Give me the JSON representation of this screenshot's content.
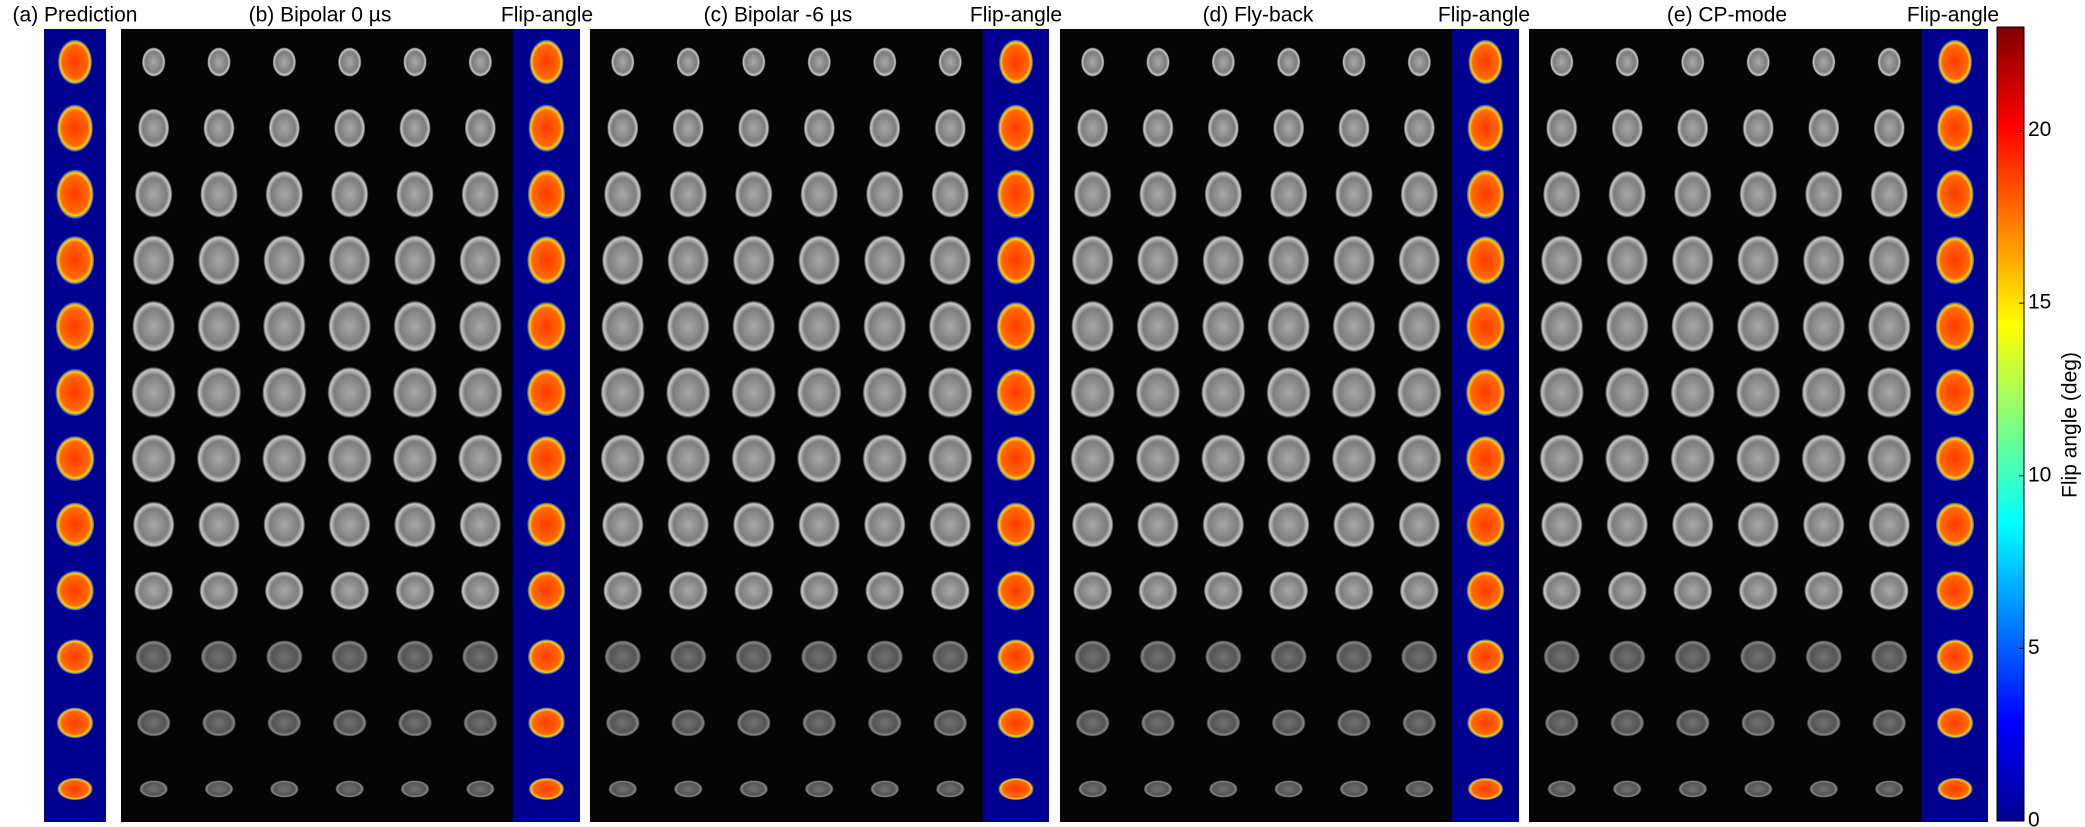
{
  "panels": [
    {
      "title": "(a) Prediction"
    },
    {
      "title": "(b) Bipolar 0 µs",
      "map_title": "Flip-angle"
    },
    {
      "title": "(c) Bipolar -6 µs",
      "map_title": "Flip-angle"
    },
    {
      "title": "(d) Fly-back",
      "map_title": "Flip-angle"
    },
    {
      "title": "(e) CP-mode",
      "map_title": "Flip-angle"
    }
  ],
  "colorbar": {
    "label": "Flip angle (deg)",
    "ylim": [
      0,
      23
    ],
    "yticks": [
      0,
      5,
      10,
      15,
      20
    ]
  }
}
